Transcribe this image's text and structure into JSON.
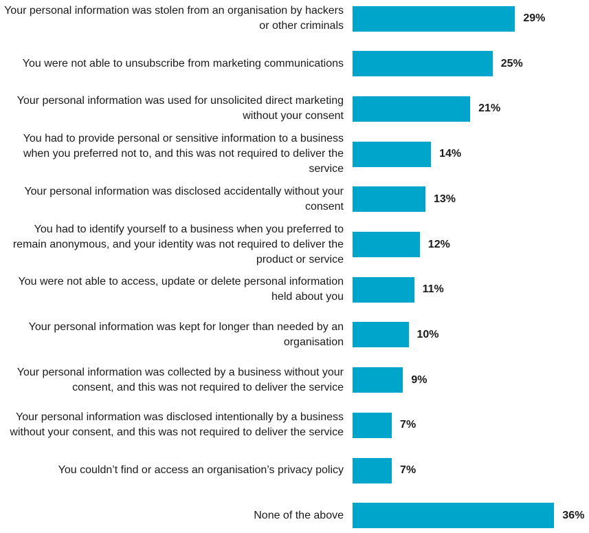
{
  "chart_data": {
    "type": "bar",
    "orientation": "horizontal",
    "color": "#00a5cc",
    "categories": [
      "Your personal information was stolen from an organisation by hackers or other criminals",
      "You were not able to unsubscribe from marketing communications",
      "Your personal information was used for unsolicited direct marketing without your consent",
      "You had to provide personal or sensitive information to a business when you preferred not to, and this was not required to deliver the service",
      "Your personal information was disclosed accidentally without your consent",
      "You had to identify yourself to a business when you preferred to remain anonymous, and your identity was not required to deliver the product or service",
      "You were not able to access, update or delete personal information held about you",
      "Your personal information was kept for longer than needed by an organisation",
      "Your personal information was collected by a business without your consent, and this was not required to deliver the service",
      "Your personal information was disclosed intentionally by a business without your consent, and this was not required to deliver the service",
      "You couldn’t find or access an organisation’s privacy policy",
      "None of the above"
    ],
    "values": [
      29,
      25,
      21,
      14,
      13,
      12,
      11,
      10,
      9,
      7,
      7,
      36
    ],
    "value_labels": [
      "29%",
      "25%",
      "21%",
      "14%",
      "13%",
      "12%",
      "11%",
      "10%",
      "9%",
      "7%",
      "7%",
      "36%"
    ]
  }
}
